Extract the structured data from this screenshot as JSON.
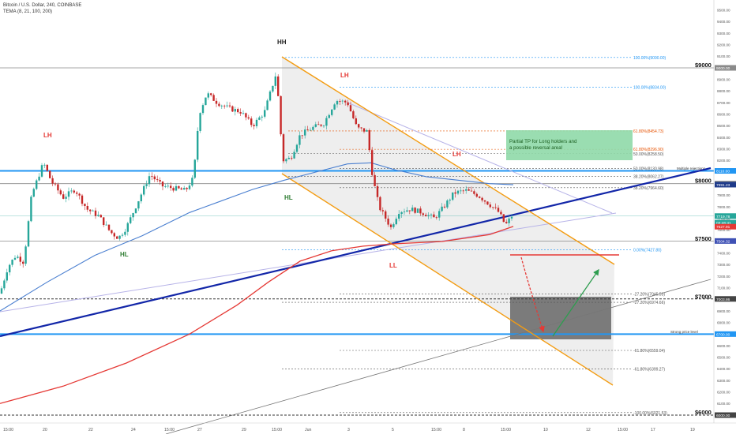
{
  "header": {
    "symbol_title": "Bitcoin / U.S. Dollar, 240, COINBASE",
    "indicator_label": "TEMA (8, 21, 100, 200)"
  },
  "price_axis": {
    "min": 6000,
    "max": 9500,
    "step": 100,
    "bold_levels": [
      "$9000",
      "$8000",
      "$7500",
      "$7000",
      "$6000"
    ],
    "bold_values": [
      9000,
      8000,
      7500,
      7000,
      6000
    ]
  },
  "time_axis": {
    "labels": [
      "15:00",
      "20",
      "22",
      "24",
      "15:00",
      "27",
      "29",
      "15:00",
      "Jun",
      "3",
      "5",
      "15:00",
      "8",
      "15:00",
      "10",
      "12",
      "15:00",
      "17",
      "19"
    ]
  },
  "price_tags": [
    {
      "value": 9000,
      "text": "9000.00",
      "color": "#8a8a8a"
    },
    {
      "value": 8110,
      "text": "8110.00",
      "color": "#2196f3"
    },
    {
      "value": 8000,
      "text": "8000.00",
      "color": "#8a8a8a"
    },
    {
      "value": 7991.23,
      "text": "7991.23",
      "color": "#1e3a8a"
    },
    {
      "value": 7719.78,
      "text": "7719.78",
      "color": "#26a69a"
    },
    {
      "value": 7663,
      "text": "03:46:41",
      "color": "#26a69a"
    },
    {
      "value": 7627.91,
      "text": "7627.91",
      "color": "#e53935"
    },
    {
      "value": 7504.32,
      "text": "7504.32",
      "color": "#3f51b5"
    },
    {
      "value": 7003.86,
      "text": "7003.86",
      "color": "#444444"
    },
    {
      "value": 6700,
      "text": "6700.00",
      "color": "#2196f3"
    },
    {
      "value": 6000,
      "text": "6000.00",
      "color": "#444444"
    }
  ],
  "fibonacci": [
    {
      "value": 9090,
      "label": "100.00%(9090.00)",
      "color": "#2196f3"
    },
    {
      "value": 8834,
      "label": "100.00%(8834.00)",
      "color": "#2196f3"
    },
    {
      "value": 8454.73,
      "label": "61.80%(8454.73)",
      "color": "#e65100"
    },
    {
      "value": 8296.9,
      "label": "61.80%(8296.90)",
      "color": "#e65100"
    },
    {
      "value": 8258.5,
      "label": "50.00%(8258.50)",
      "color": "#555555"
    },
    {
      "value": 8130.98,
      "label": "50.00%(8130.98)",
      "color": "#555555"
    },
    {
      "value": 8062.27,
      "label": "38.20%(8062.27)",
      "color": "#555555"
    },
    {
      "value": 7964.6,
      "label": "38.20%(7964.60)",
      "color": "#555555"
    },
    {
      "value": 7427.8,
      "label": "0.00%(7427.80)",
      "color": "#2196f3"
    },
    {
      "value": 7045.53,
      "label": "-27.20%(7045.53)",
      "color": "#555555"
    },
    {
      "value": 6974.66,
      "label": "-27.20%(6974.66)",
      "color": "#555555"
    },
    {
      "value": 6559.04,
      "label": "-61.80%(6559.04)",
      "color": "#555555"
    },
    {
      "value": 6399.27,
      "label": "-61.80%(6399.27)",
      "color": "#555555"
    },
    {
      "value": 6021.53,
      "label": "-100.00%(6021.53)",
      "color": "#555555"
    }
  ],
  "line_labels": {
    "multiple_rejections": "Multiple rejections",
    "strong_price_level": "Strong price level"
  },
  "swing_labels": [
    {
      "text": "HH",
      "color": "#222222"
    },
    {
      "text": "LH",
      "color": "#e53935"
    },
    {
      "text": "LH",
      "color": "#e53935"
    },
    {
      "text": "LH",
      "color": "#e53935"
    },
    {
      "text": "HL",
      "color": "#2e7d32"
    },
    {
      "text": "HL",
      "color": "#2e7d32"
    },
    {
      "text": "LL",
      "color": "#e53935"
    }
  ],
  "note": {
    "line1": "Partial TP for Long holders and",
    "line2": "a possible reversal area!",
    "fill": "#8fd9a8"
  },
  "colors": {
    "up": "#26a69a",
    "down": "#c62828",
    "channel": "#f39c12",
    "trendline": "#1226a8",
    "tema_red": "#e53935",
    "tema_blue": "#4a7fd0",
    "support": "#2196f3"
  },
  "chart_data": {
    "type": "candlestick",
    "title": "Bitcoin / U.S. Dollar, 240, COINBASE",
    "indicator": "TEMA (8, 21, 100, 200)",
    "ylim": [
      6000,
      9500
    ],
    "close_path": [
      [
        0,
        7050
      ],
      [
        10,
        7280
      ],
      [
        20,
        7380
      ],
      [
        30,
        7320
      ],
      [
        40,
        7900
      ],
      [
        55,
        8180
      ],
      [
        65,
        8020
      ],
      [
        80,
        7880
      ],
      [
        95,
        7950
      ],
      [
        110,
        7780
      ],
      [
        125,
        7720
      ],
      [
        140,
        7580
      ],
      [
        150,
        7530
      ],
      [
        160,
        7620
      ],
      [
        175,
        7850
      ],
      [
        190,
        8080
      ],
      [
        205,
        7980
      ],
      [
        220,
        7960
      ],
      [
        235,
        7940
      ],
      [
        245,
        8050
      ],
      [
        252,
        8600
      ],
      [
        262,
        8780
      ],
      [
        275,
        8700
      ],
      [
        290,
        8650
      ],
      [
        305,
        8620
      ],
      [
        320,
        8500
      ],
      [
        335,
        8620
      ],
      [
        350,
        8960
      ],
      [
        358,
        8200
      ],
      [
        368,
        8220
      ],
      [
        380,
        8420
      ],
      [
        395,
        8480
      ],
      [
        410,
        8520
      ],
      [
        425,
        8720
      ],
      [
        440,
        8700
      ],
      [
        452,
        8480
      ],
      [
        465,
        8450
      ],
      [
        472,
        8050
      ],
      [
        480,
        7800
      ],
      [
        495,
        7620
      ],
      [
        505,
        7760
      ],
      [
        520,
        7780
      ],
      [
        535,
        7750
      ],
      [
        550,
        7700
      ],
      [
        562,
        7800
      ],
      [
        575,
        7920
      ],
      [
        590,
        7940
      ],
      [
        605,
        7900
      ],
      [
        620,
        7820
      ],
      [
        632,
        7750
      ],
      [
        640,
        7640
      ],
      [
        648,
        7720
      ]
    ],
    "tema_200": [
      [
        0,
        6100
      ],
      [
        80,
        6250
      ],
      [
        160,
        6450
      ],
      [
        240,
        6700
      ],
      [
        300,
        6950
      ],
      [
        340,
        7150
      ],
      [
        380,
        7330
      ],
      [
        420,
        7420
      ],
      [
        460,
        7460
      ],
      [
        500,
        7480
      ],
      [
        560,
        7500
      ],
      [
        620,
        7560
      ],
      [
        650,
        7630
      ]
    ],
    "tema_100": [
      [
        0,
        6900
      ],
      [
        60,
        7150
      ],
      [
        120,
        7380
      ],
      [
        180,
        7550
      ],
      [
        240,
        7750
      ],
      [
        280,
        7850
      ],
      [
        320,
        7950
      ],
      [
        360,
        8030
      ],
      [
        400,
        8100
      ],
      [
        440,
        8170
      ],
      [
        470,
        8180
      ],
      [
        500,
        8120
      ],
      [
        540,
        8060
      ],
      [
        580,
        8030
      ],
      [
        620,
        8000
      ],
      [
        650,
        7990
      ]
    ],
    "series": [
      {
        "name": "TEMA (8, 21, 100, 200)",
        "role": "red line"
      },
      {
        "name": "TEMA (8, 21, 100, 200)",
        "role": "blue line"
      }
    ]
  }
}
